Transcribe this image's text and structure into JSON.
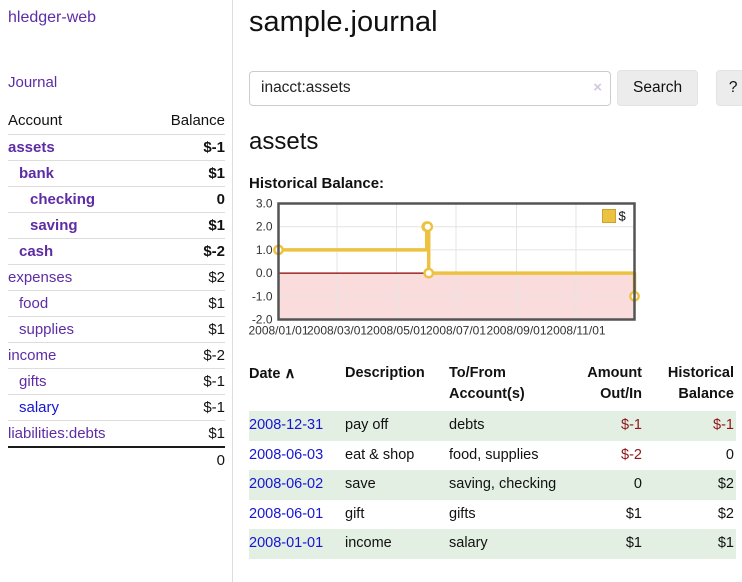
{
  "app": {
    "brand": "hledger-web",
    "nav_journal": "Journal"
  },
  "sidebar": {
    "col_account": "Account",
    "col_balance": "Balance",
    "accounts": [
      {
        "name": "assets",
        "indent": 0,
        "bold": true,
        "balance": "$-1",
        "neg": "strong"
      },
      {
        "name": "bank",
        "indent": 1,
        "bold": true,
        "balance": "$1"
      },
      {
        "name": "checking",
        "indent": 2,
        "bold": true,
        "balance": "0"
      },
      {
        "name": "saving",
        "indent": 2,
        "bold": true,
        "balance": "$1"
      },
      {
        "name": "cash",
        "indent": 1,
        "bold": true,
        "balance": "$-2",
        "neg": "strong"
      },
      {
        "name": "expenses",
        "indent": 0,
        "bold": false,
        "balance": "$2"
      },
      {
        "name": "food",
        "indent": 1,
        "bold": false,
        "balance": "$1"
      },
      {
        "name": "supplies",
        "indent": 1,
        "bold": false,
        "balance": "$1"
      },
      {
        "name": "income",
        "indent": 0,
        "bold": false,
        "balance": "$-2",
        "neg": "soft"
      },
      {
        "name": "gifts",
        "indent": 1,
        "bold": false,
        "balance": "$-1",
        "neg": "soft"
      },
      {
        "name": "salary",
        "indent": 1,
        "bold": false,
        "balance": "$-1",
        "neg": "soft",
        "unvisited": true
      },
      {
        "name": "liabilities:debts",
        "indent": 0,
        "bold": false,
        "balance": "$1"
      }
    ],
    "total": "0"
  },
  "main": {
    "title": "sample.journal",
    "search": {
      "value": "inacct:assets",
      "clear_icon": "×",
      "button": "Search",
      "help_button": "?"
    },
    "section_title": "assets",
    "chart_label": "Historical Balance:"
  },
  "register": {
    "headers": {
      "date": "Date",
      "sort_icon": "∧",
      "description": "Description",
      "tofrom_l1": "To/From",
      "tofrom_l2": "Account(s)",
      "amount_l1": "Amount",
      "amount_l2": "Out/In",
      "balance_l1": "Historical",
      "balance_l2": "Balance"
    },
    "rows": [
      {
        "date": "2008-12-31",
        "description": "pay off",
        "accounts": "debts",
        "amount": "$-1",
        "amount_neg": true,
        "balance": "$-1",
        "balance_neg": true
      },
      {
        "date": "2008-06-03",
        "description": "eat & shop",
        "accounts": "food, supplies",
        "amount": "$-2",
        "amount_neg": true,
        "balance": "0",
        "balance_neg": false
      },
      {
        "date": "2008-06-02",
        "description": "save",
        "accounts": "saving, checking",
        "amount": "0",
        "amount_neg": false,
        "balance": "$2",
        "balance_neg": false
      },
      {
        "date": "2008-06-01",
        "description": "gift",
        "accounts": "gifts",
        "amount": "$1",
        "amount_neg": false,
        "balance": "$2",
        "balance_neg": false
      },
      {
        "date": "2008-01-01",
        "description": "income",
        "accounts": "salary",
        "amount": "$1",
        "amount_neg": false,
        "balance": "$1",
        "balance_neg": false
      }
    ]
  },
  "chart_data": {
    "type": "line",
    "title": "Historical Balance:",
    "legend": {
      "label": "$",
      "position": "top-right"
    },
    "x_range": {
      "start": "2008-01-01",
      "end": "2008-12-31"
    },
    "ylim": [
      -2,
      3
    ],
    "y_ticks": [
      3.0,
      2.0,
      1.0,
      0.0,
      -1.0,
      -2.0
    ],
    "x_ticks": [
      {
        "date": "2008-01-01",
        "label": "2008/01/01"
      },
      {
        "date": "2008-03-01",
        "label": "2008/03/01"
      },
      {
        "date": "2008-05-01",
        "label": "2008/05/01"
      },
      {
        "date": "2008-07-01",
        "label": "2008/07/01"
      },
      {
        "date": "2008-09-01",
        "label": "2008/09/01"
      },
      {
        "date": "2008-11-01",
        "label": "2008/11/01"
      }
    ],
    "grid": true,
    "negative_region": true,
    "series": [
      {
        "name": "$",
        "color": "#EDC240",
        "steps": true,
        "points": [
          {
            "date": "2008-01-01",
            "value": 1
          },
          {
            "date": "2008-06-01",
            "value": 2
          },
          {
            "date": "2008-06-02",
            "value": 2
          },
          {
            "date": "2008-06-03",
            "value": 0
          },
          {
            "date": "2008-12-31",
            "value": -1
          }
        ]
      }
    ]
  },
  "colors": {
    "accent_purple": "#5e2ca5",
    "link_blue": "#1515d6",
    "negative_strong": "#8f1418",
    "negative_soft": "#bb7272",
    "stripe_green": "#e2efe2",
    "chart_line": "#EDC240",
    "chart_negative_fill": "#fbdcdc",
    "chart_zero_line": "#8b0000",
    "chart_border": "#545454",
    "chart_grid": "#e4e4e4"
  }
}
